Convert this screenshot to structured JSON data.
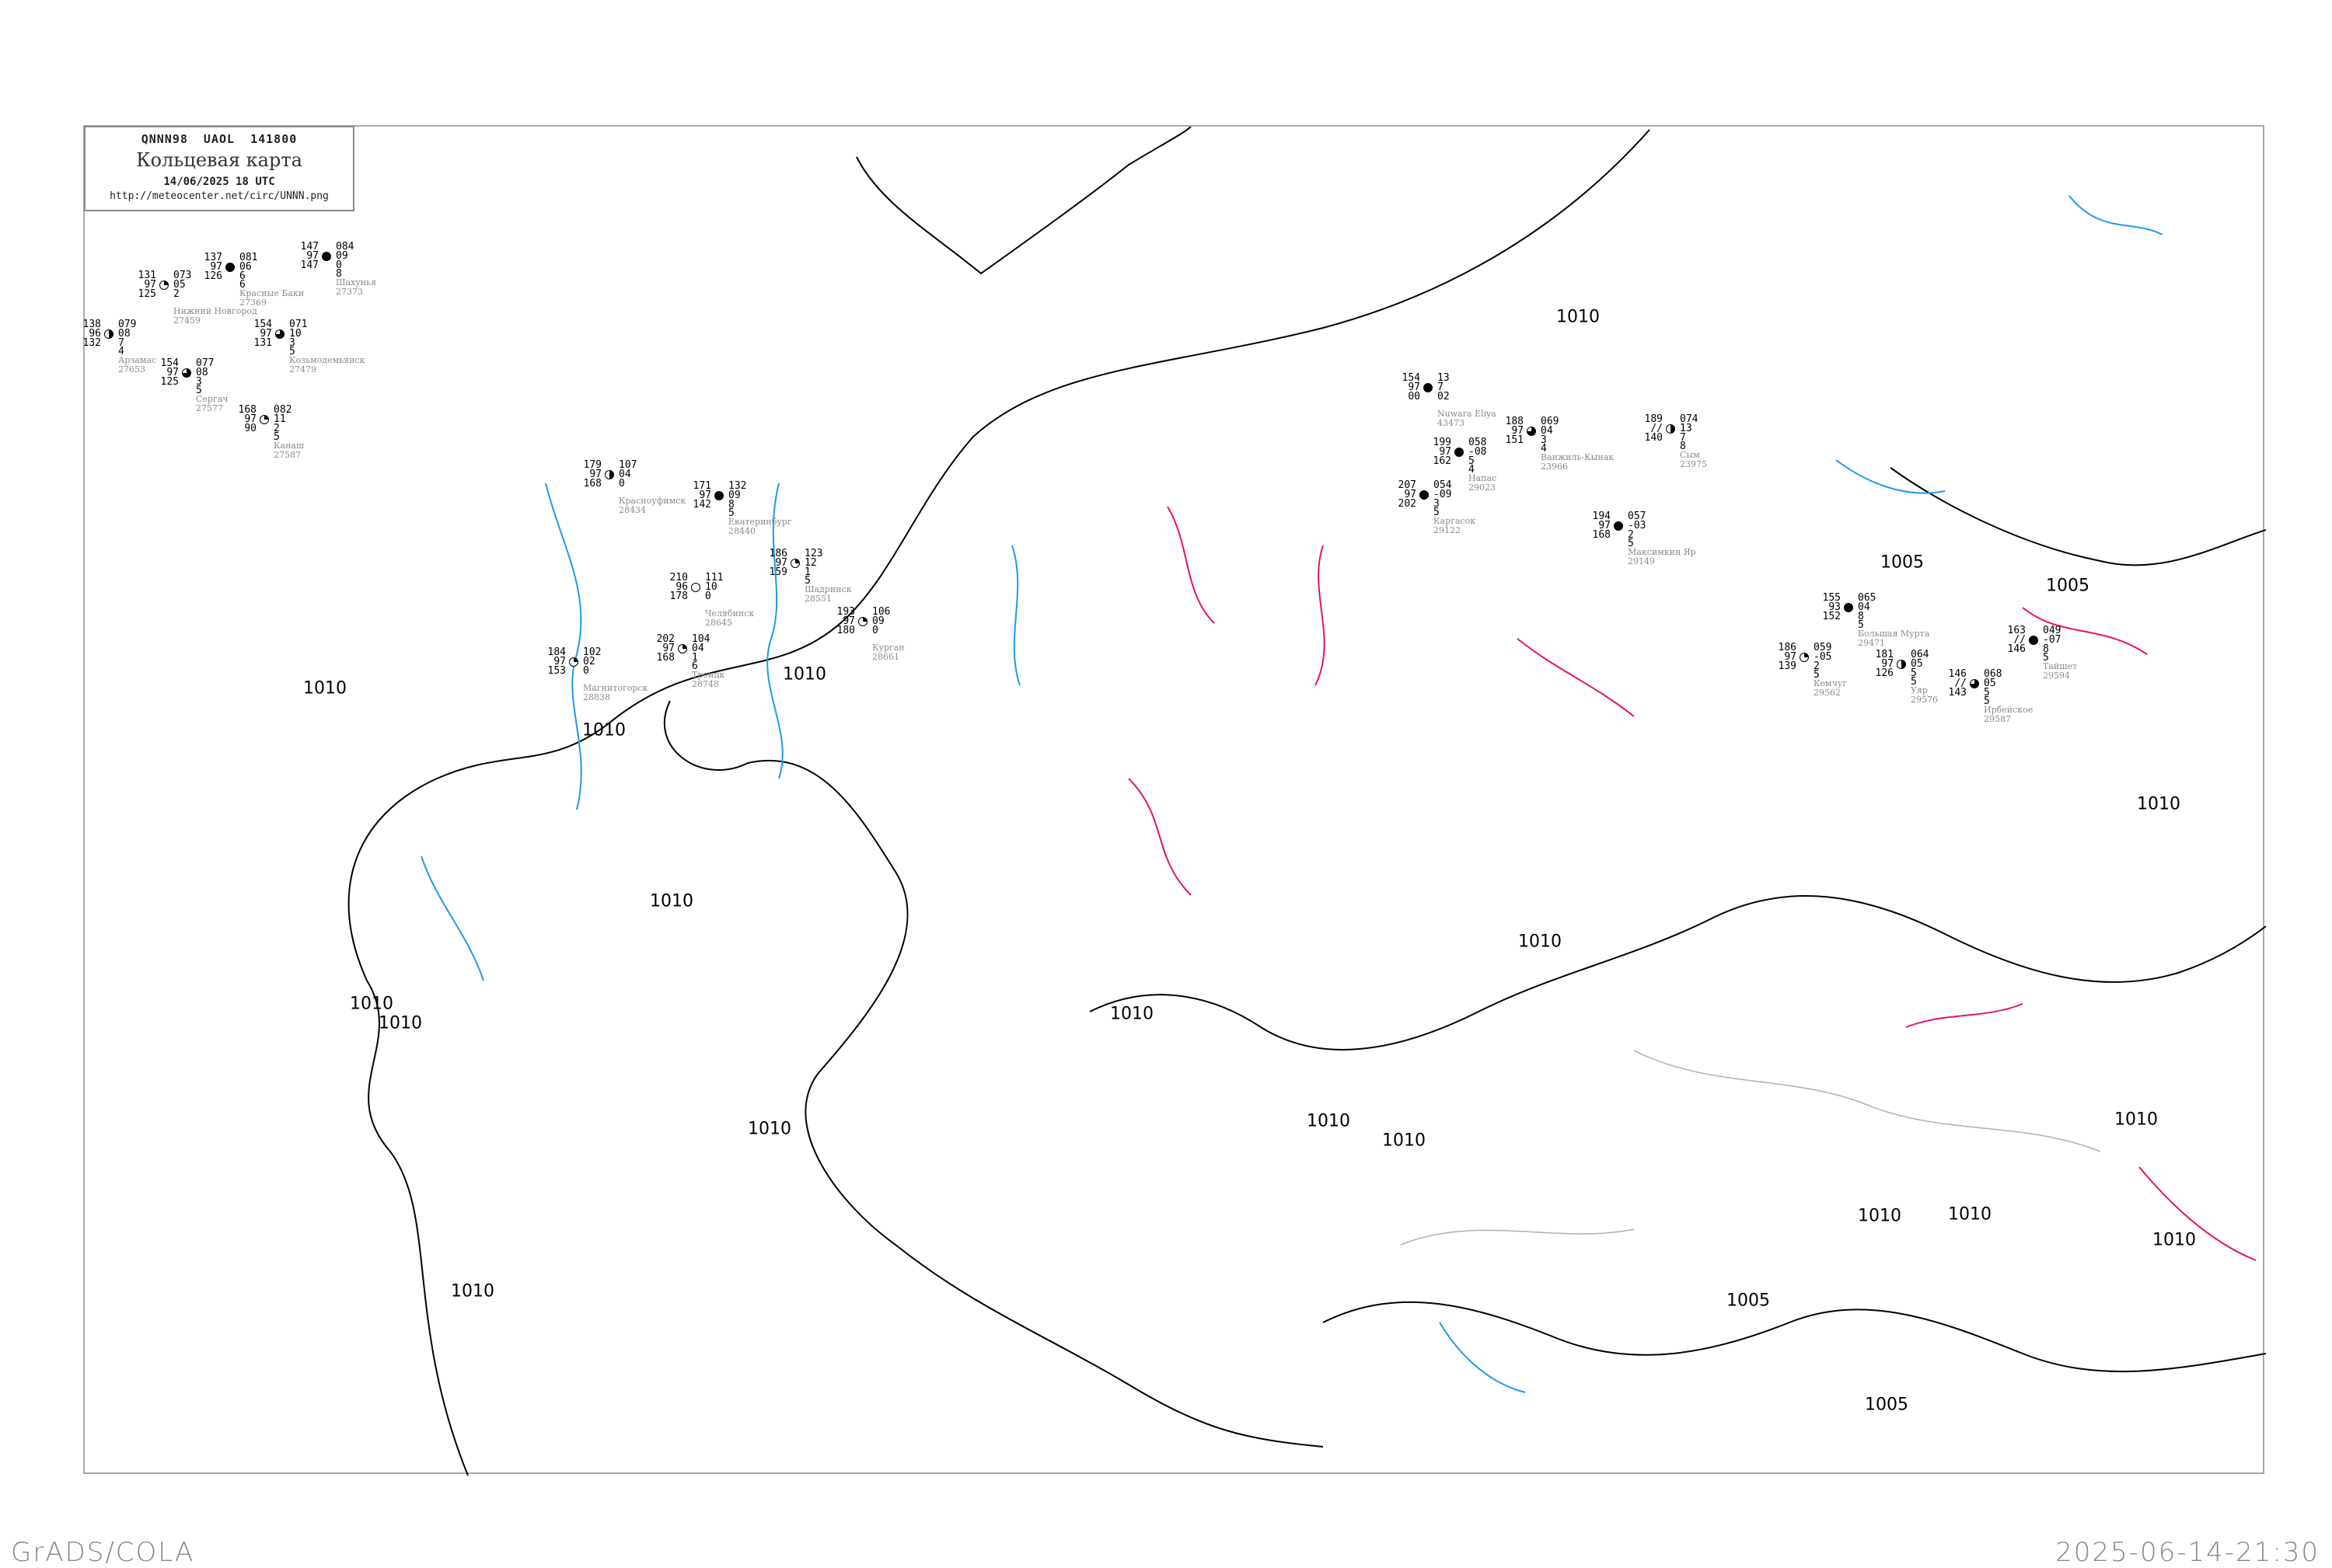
{
  "header": {
    "code_line": "QNNN98  UAOL  141800",
    "title": "Кольцевая карта",
    "date": "14/06/2025 18 UTC",
    "url": "http://meteocenter.net/circ/UNNN.png"
  },
  "footer": {
    "left": "GrADS/COLA",
    "right": "2025-06-14-21:30"
  },
  "colors": {
    "isobars": "#000000",
    "coastline_rivers": "#1e9be8",
    "isallobars": "#e8106e",
    "borders": "#b0b0b0",
    "station_names": "#8a8a8a",
    "marker_green": "#00c040",
    "marker_red": "#f0306a",
    "marker_yellow": "#f8f060"
  },
  "isobar_labels": [
    "1010",
    "1010",
    "1010",
    "1010",
    "1010",
    "1010",
    "1010",
    "1010",
    "1010",
    "1010",
    "1010",
    "1010",
    "1010",
    "1010",
    "1010",
    "1010",
    "1010",
    "1010",
    "1005",
    "1005",
    "1005",
    "1005"
  ],
  "stations": [
    {
      "name": "Nuwara Eliya",
      "id": "43473",
      "ul": "154",
      "ml": "97",
      "ll": "00",
      "ur": "13",
      "mr": "7",
      "r1": "02",
      "r2": "",
      "cloud": 1.0
    },
    {
      "name": "Напас",
      "id": "29023",
      "ul": "199",
      "ml": "97",
      "ll": "162",
      "ur": "058",
      "mr": "-08",
      "r1": "5",
      "r2": "4",
      "cloud": 1.0
    },
    {
      "name": "Ванжиль-Кынак",
      "id": "23966",
      "ul": "188",
      "ml": "97",
      "ll": "151",
      "ur": "069",
      "mr": "04",
      "r1": "3",
      "r2": "4",
      "cloud": 0.75
    },
    {
      "name": "Сым",
      "id": "23975",
      "ul": "189",
      "ml": "//",
      "ll": "140",
      "ur": "074",
      "mr": "13",
      "r1": "7",
      "r2": "8",
      "cloud": 0.5
    },
    {
      "name": "Каргасок",
      "id": "29122",
      "ul": "207",
      "ml": "97",
      "ll": "202",
      "ur": "054",
      "mr": "-09",
      "r1": "3",
      "r2": "5",
      "cloud": 1.0
    },
    {
      "name": "Максимкин Яр",
      "id": "29149",
      "ul": "194",
      "ml": "97",
      "ll": "168",
      "ur": "057",
      "mr": "-03",
      "r1": "2",
      "r2": "5",
      "cloud": 1.0
    },
    {
      "name": "Екатеринбург",
      "id": "28440",
      "ul": "171",
      "ml": "97",
      "ll": "142",
      "ur": "132",
      "mr": "09",
      "r1": "8",
      "r2": "5",
      "cloud": 1.0
    },
    {
      "name": "Шадринск",
      "id": "28551",
      "ul": "186",
      "ml": "97",
      "ll": "159",
      "ur": "123",
      "mr": "12",
      "r1": "1",
      "r2": "5",
      "cloud": 0.25
    },
    {
      "name": "Челябинск",
      "id": "28645",
      "ul": "210",
      "ml": "96",
      "ll": "178",
      "ur": "111",
      "mr": "10",
      "r1": "0",
      "r2": "",
      "cloud": 0
    },
    {
      "name": "Курган",
      "id": "28661",
      "ul": "193",
      "ml": "97",
      "ll": "180",
      "ur": "106",
      "mr": "09",
      "r1": "0",
      "r2": "",
      "cloud": 0.25
    },
    {
      "name": "Троицк",
      "id": "28748",
      "ul": "202",
      "ml": "97",
      "ll": "168",
      "ur": "104",
      "mr": "04",
      "r1": "1",
      "r2": "6",
      "cloud": 0.25
    },
    {
      "name": "Магнитогорск",
      "id": "28838",
      "ul": "184",
      "ml": "97",
      "ll": "153",
      "ur": "102",
      "mr": "02",
      "r1": "0",
      "r2": "",
      "cloud": 0.25
    },
    {
      "name": "Красноуфимск",
      "id": "28434",
      "ul": "179",
      "ml": "97",
      "ll": "168",
      "ur": "107",
      "mr": "04",
      "r1": "0",
      "r2": "",
      "cloud": 0.5
    },
    {
      "name": "Большая Мурта",
      "id": "29471",
      "ul": "155",
      "ml": "93",
      "ll": "152",
      "ur": "065",
      "mr": "04",
      "r1": "8",
      "r2": "5",
      "cloud": 1.0
    },
    {
      "name": "Кемчуг",
      "id": "29562",
      "ul": "186",
      "ml": "97",
      "ll": "139",
      "ur": "059",
      "mr": "-05",
      "r1": "2",
      "r2": "5",
      "cloud": 0.25
    },
    {
      "name": "Уяр",
      "id": "29576",
      "ul": "181",
      "ml": "97",
      "ll": "126",
      "ur": "064",
      "mr": "05",
      "r1": "5",
      "r2": "5",
      "cloud": 0.5
    },
    {
      "name": "Ирбейское",
      "id": "29587",
      "ul": "146",
      "ml": "//",
      "ll": "143",
      "ur": "068",
      "mr": "05",
      "r1": "5",
      "r2": "5",
      "cloud": 0.75
    },
    {
      "name": "Тайшет",
      "id": "29594",
      "ul": "163",
      "ml": "//",
      "ll": "146",
      "ur": "049",
      "mr": "-07",
      "r1": "8",
      "r2": "5",
      "cloud": 1.0
    },
    {
      "name": "Нижний Новгород",
      "id": "27459",
      "ul": "131",
      "ml": "97",
      "ll": "125",
      "ur": "073",
      "mr": "05",
      "r1": "2",
      "r2": "",
      "cloud": 0.25
    },
    {
      "name": "Красные Баки",
      "id": "27369",
      "ul": "137",
      "ml": "97",
      "ll": "126",
      "ur": "081",
      "mr": "06",
      "r1": "6",
      "r2": "6",
      "cloud": 1.0
    },
    {
      "name": "Арзамас",
      "id": "27653",
      "ul": "138",
      "ml": "96",
      "ll": "132",
      "ur": "079",
      "mr": "08",
      "r1": "7",
      "r2": "4",
      "cloud": 0.5
    },
    {
      "name": "Сергач",
      "id": "27577",
      "ul": "154",
      "ml": "97",
      "ll": "125",
      "ur": "077",
      "mr": "08",
      "r1": "3",
      "r2": "5",
      "cloud": 0.75
    },
    {
      "name": "Козьмодемьянск",
      "id": "27479",
      "ul": "154",
      "ml": "97",
      "ll": "131",
      "ur": "071",
      "mr": "10",
      "r1": "3",
      "r2": "5",
      "cloud": 0.75
    },
    {
      "name": "Канаш",
      "id": "27587",
      "ul": "168",
      "ml": "97",
      "ll": "90",
      "ur": "082",
      "mr": "11",
      "r1": "2",
      "r2": "5",
      "cloud": 0.25
    },
    {
      "name": "Шахунья",
      "id": "27373",
      "ul": "147",
      "ml": "97",
      "ll": "147",
      "ur": "084",
      "mr": "09",
      "r1": "0",
      "r2": "8",
      "cloud": 1.0
    }
  ]
}
